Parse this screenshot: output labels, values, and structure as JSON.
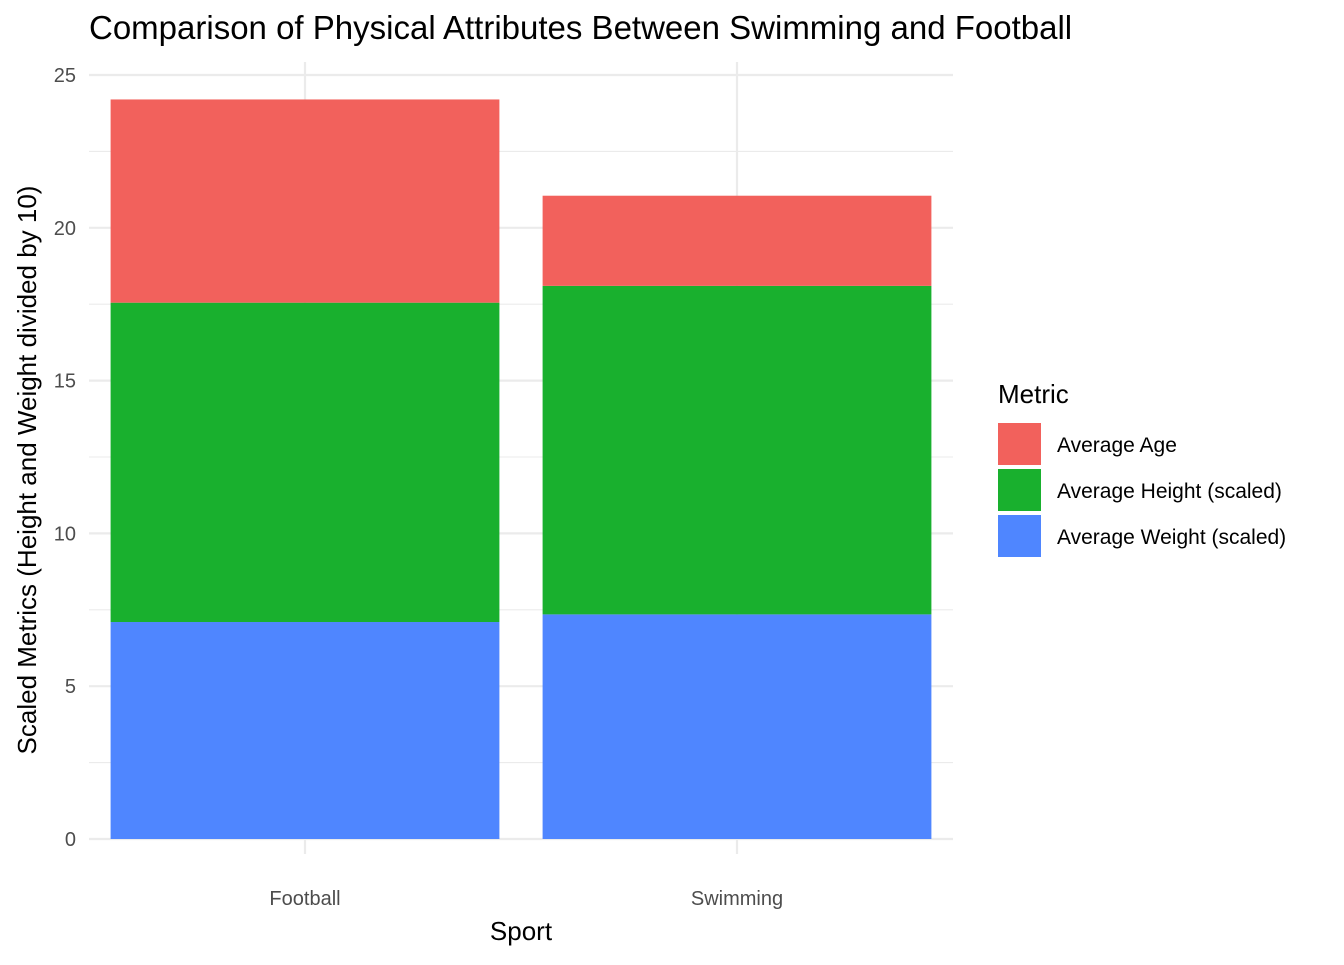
{
  "chart_data": {
    "type": "bar",
    "stacked": true,
    "title": "Comparison of Physical Attributes Between Swimming and Football",
    "xlabel": "Sport",
    "ylabel": "Scaled Metrics (Height and Weight divided by 10)",
    "categories": [
      "Football",
      "Swimming"
    ],
    "ylim": [
      0,
      25
    ],
    "yticks": [
      0,
      5,
      10,
      15,
      20,
      25
    ],
    "grid": true,
    "legend_title": "Metric",
    "legend_position": "right",
    "series": [
      {
        "name": "Average Weight (scaled)",
        "color": "#4f86ff",
        "values": [
          7.1,
          7.35
        ]
      },
      {
        "name": "Average Height (scaled)",
        "color": "#19b02e",
        "values": [
          10.45,
          10.75
        ]
      },
      {
        "name": "Average Age",
        "color": "#f2615c",
        "values": [
          6.65,
          2.95
        ]
      }
    ],
    "legend_order": [
      "Average Age",
      "Average Height (scaled)",
      "Average Weight (scaled)"
    ]
  }
}
